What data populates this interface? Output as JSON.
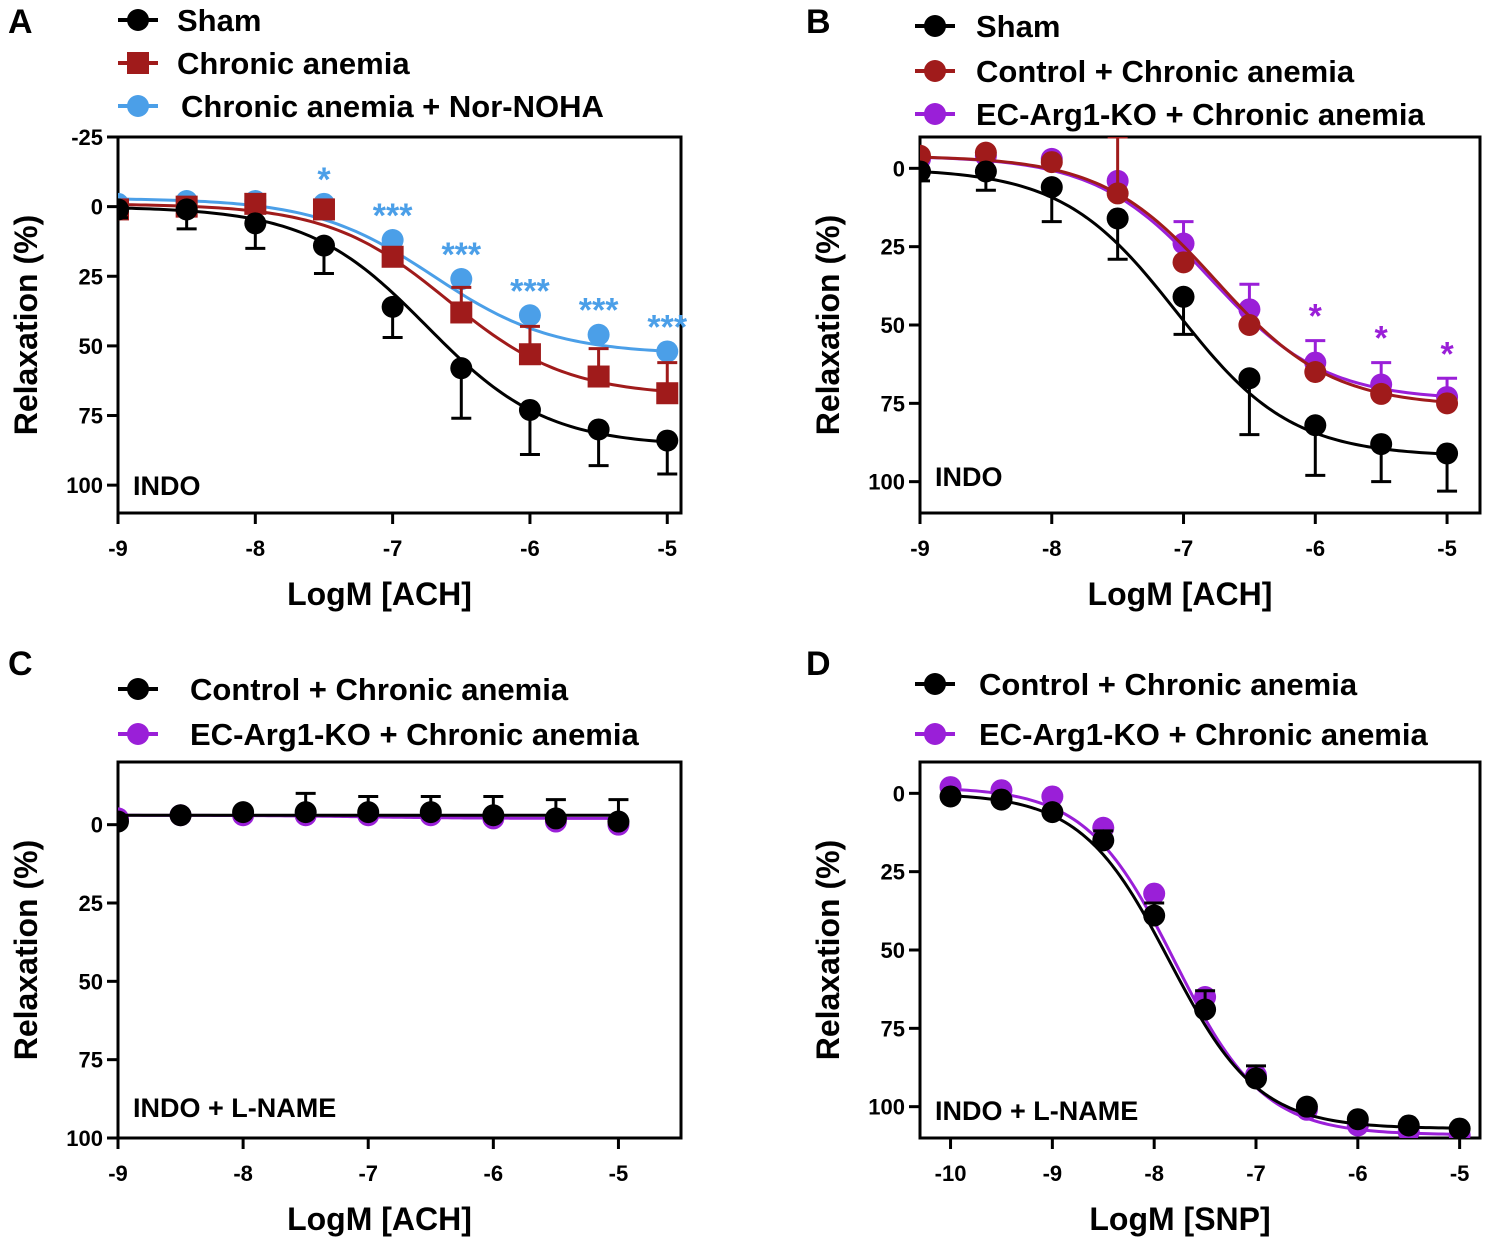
{
  "colors": {
    "black": "#000000",
    "red": "#a01b1b",
    "blue": "#4b9fe8",
    "purple": "#9a1fd8"
  },
  "chart_data": [
    {
      "letter": "A",
      "type": "line",
      "xlabel": "LogM [ACH]",
      "ylabel": "Relaxation (%)",
      "condition": "INDO",
      "xlim": [
        -9.0,
        -4.9
      ],
      "ylim": [
        -25,
        110
      ],
      "y_inverted": true,
      "xticks": [
        -9,
        -8,
        -7,
        -6,
        -5
      ],
      "yticks": [
        -25,
        0,
        25,
        50,
        75,
        100
      ],
      "x": [
        -9,
        -8.5,
        -8,
        -7.5,
        -7,
        -6.5,
        -6,
        -5.5,
        -5
      ],
      "series": [
        {
          "name": "Sham",
          "color": "#000000",
          "marker": "circle",
          "values": [
            1,
            1,
            6,
            14,
            36,
            58,
            73,
            80,
            84
          ],
          "errors": [
            3,
            7,
            9,
            10,
            11,
            18,
            16,
            13,
            12
          ],
          "error_dir": "down",
          "fit": [
            0,
            86,
            -6.75
          ]
        },
        {
          "name": "Chronic anemia",
          "color": "#a01b1b",
          "marker": "square",
          "values": [
            1,
            0,
            -1,
            1,
            18,
            38,
            53,
            61,
            67
          ],
          "errors": [
            0,
            0,
            0,
            0,
            0,
            9,
            10,
            10,
            11
          ],
          "error_dir": "up",
          "fit": [
            -1,
            68,
            -6.6
          ]
        },
        {
          "name": "Chronic anemia + Nor-NOHA",
          "color": "#4b9fe8",
          "marker": "circle",
          "values": [
            -1,
            -2,
            -2,
            -1,
            12,
            26,
            39,
            46,
            52
          ],
          "errors": [
            0,
            0,
            0,
            0,
            0,
            0,
            0,
            0,
            0
          ],
          "error_dir": "up",
          "fit": [
            -3,
            53,
            -6.7
          ]
        }
      ],
      "significance": {
        "color": "#4b9fe8",
        "marks": [
          {
            "x": -7.5,
            "y": -1,
            "label": "*"
          },
          {
            "x": -7,
            "y": 12,
            "label": "***"
          },
          {
            "x": -6.5,
            "y": 26,
            "label": "***"
          },
          {
            "x": -6,
            "y": 39,
            "label": "***"
          },
          {
            "x": -5.5,
            "y": 46,
            "label": "***"
          },
          {
            "x": -5,
            "y": 52,
            "label": "***"
          }
        ]
      }
    },
    {
      "letter": "B",
      "type": "line",
      "xlabel": "LogM [ACH]",
      "ylabel": "Relaxation (%)",
      "condition": "INDO",
      "xlim": [
        -9.0,
        -4.75
      ],
      "ylim": [
        -10,
        110
      ],
      "y_inverted": true,
      "xticks": [
        -9,
        -8,
        -7,
        -6,
        -5
      ],
      "yticks": [
        0,
        25,
        50,
        75,
        100
      ],
      "x": [
        -9,
        -8.5,
        -8,
        -7.5,
        -7,
        -6.5,
        -6,
        -5.5,
        -5
      ],
      "series": [
        {
          "name": "Sham",
          "color": "#000000",
          "marker": "circle",
          "values": [
            1,
            1,
            6,
            16,
            41,
            67,
            82,
            88,
            91
          ],
          "errors": [
            3,
            6,
            11,
            13,
            12,
            18,
            16,
            12,
            12
          ],
          "error_dir": "down",
          "fit": [
            0,
            92,
            -7.05
          ]
        },
        {
          "name": "Control + Chronic anemia",
          "color": "#a01b1b",
          "marker": "circle",
          "values": [
            -4,
            -5,
            -2,
            8,
            30,
            50,
            65,
            72,
            75
          ],
          "errors": [
            0,
            0,
            0,
            18,
            0,
            0,
            0,
            0,
            0
          ],
          "error_dir": "up",
          "fit": [
            -4,
            76,
            -6.75
          ]
        },
        {
          "name": "EC-Arg1-KO + Chronic anemia",
          "color": "#9a1fd8",
          "marker": "circle",
          "values": [
            -3,
            -4,
            -3,
            4,
            24,
            45,
            62,
            69,
            73
          ],
          "errors": [
            0,
            0,
            0,
            0,
            7,
            8,
            7,
            7,
            6
          ],
          "error_dir": "up",
          "fit": [
            -4,
            74,
            -6.8
          ]
        }
      ],
      "significance": {
        "color": "#9a1fd8",
        "marks": [
          {
            "x": -6,
            "y": 55,
            "label": "*"
          },
          {
            "x": -5.5,
            "y": 62,
            "label": "*"
          },
          {
            "x": -5,
            "y": 67,
            "label": "*"
          }
        ]
      }
    },
    {
      "letter": "C",
      "type": "line",
      "xlabel": "LogM [ACH]",
      "ylabel": "Relaxation (%)",
      "condition": "INDO + L-NAME",
      "xlim": [
        -9.0,
        -4.5
      ],
      "ylim": [
        -20,
        100
      ],
      "y_inverted": true,
      "xticks": [
        -9,
        -8,
        -7,
        -6,
        -5
      ],
      "yticks": [
        0,
        25,
        50,
        75,
        100
      ],
      "x": [
        -9,
        -8.5,
        -8,
        -7.5,
        -7,
        -6.5,
        -6,
        -5.5,
        -5
      ],
      "series": [
        {
          "name": "Control + Chronic anemia",
          "color": "#000000",
          "marker": "circle",
          "values": [
            -1,
            -3,
            -4,
            -4,
            -4,
            -4,
            -3,
            -2,
            -1
          ],
          "errors": [
            0,
            0,
            0,
            6,
            5,
            5,
            6,
            6,
            7
          ],
          "error_dir": "up",
          "fit": [
            -3,
            -3,
            -7.0
          ]
        },
        {
          "name": "EC-Arg1-KO + Chronic anemia",
          "color": "#9a1fd8",
          "marker": "circle",
          "values": [
            -2,
            -3,
            -3,
            -3,
            -3,
            -3,
            -2,
            -1,
            0
          ],
          "errors": [
            0,
            0,
            0,
            0,
            0,
            0,
            0,
            0,
            0
          ],
          "error_dir": "up",
          "fit": [
            -3,
            -2,
            -7.0
          ]
        }
      ],
      "significance": {
        "color": "#000000",
        "marks": []
      }
    },
    {
      "letter": "D",
      "type": "line",
      "xlabel": "LogM [SNP]",
      "ylabel": "Relaxation (%)",
      "condition": "INDO + L-NAME",
      "xlim": [
        -10.3,
        -4.8
      ],
      "ylim": [
        -10,
        110
      ],
      "y_inverted": true,
      "xticks": [
        -10,
        -9,
        -8,
        -7,
        -6,
        -5
      ],
      "yticks": [
        0,
        25,
        50,
        75,
        100
      ],
      "x": [
        -10,
        -9.5,
        -9,
        -8.5,
        -8,
        -7.5,
        -7,
        -6.5,
        -6,
        -5.5,
        -5
      ],
      "series": [
        {
          "name": "Control + Chronic anemia",
          "color": "#000000",
          "marker": "circle",
          "values": [
            1,
            2,
            6,
            15,
            39,
            69,
            91,
            100,
            104,
            106,
            107
          ],
          "errors": [
            0,
            0,
            0,
            3,
            4,
            6,
            4,
            0,
            0,
            0,
            0
          ],
          "error_dir": "up",
          "fit": [
            0,
            107,
            -7.85
          ]
        },
        {
          "name": "EC-Arg1-KO + Chronic anemia",
          "color": "#9a1fd8",
          "marker": "circle",
          "values": [
            -2,
            -1,
            1,
            11,
            32,
            65,
            90,
            101,
            106,
            108,
            109
          ],
          "errors": [
            0,
            0,
            0,
            0,
            0,
            0,
            0,
            0,
            0,
            0,
            0
          ],
          "error_dir": "up",
          "fit": [
            -2,
            109,
            -7.8
          ]
        }
      ],
      "significance": {
        "color": "#000000",
        "marks": []
      }
    }
  ]
}
